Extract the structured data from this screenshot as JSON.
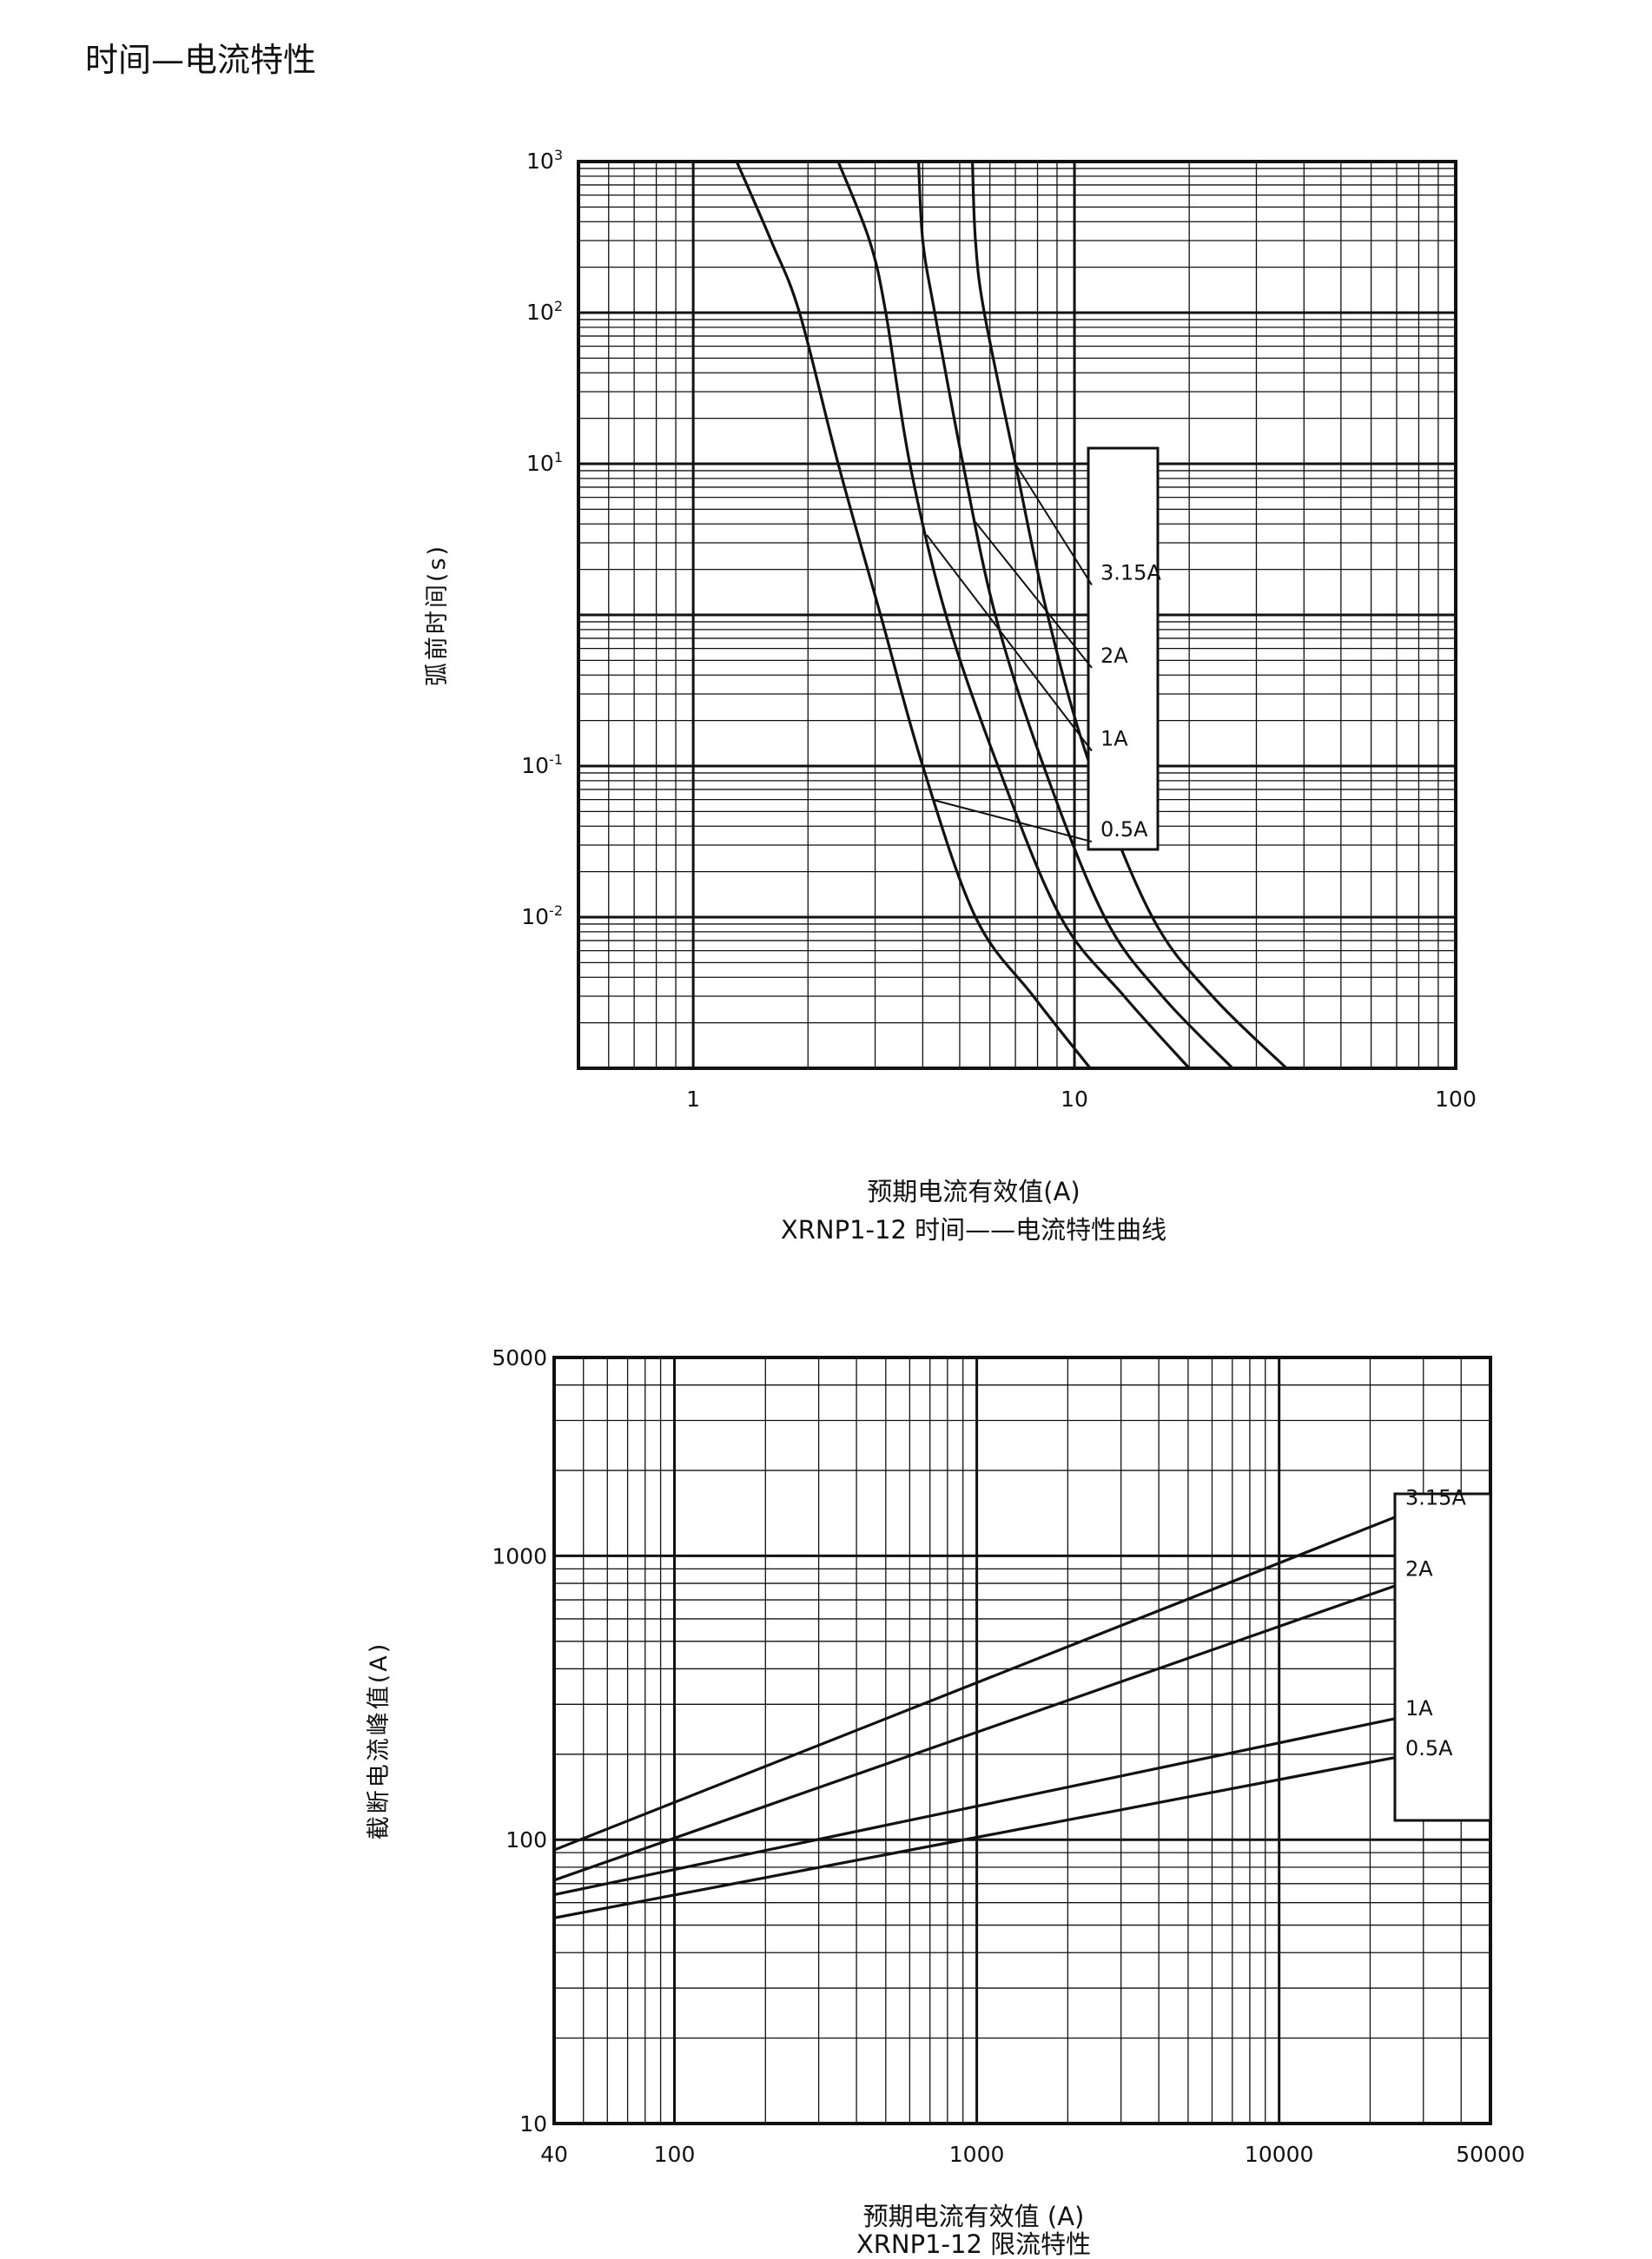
{
  "page": {
    "title": "时间—电流特性"
  },
  "colors": {
    "ink": "#111111",
    "background": "#ffffff"
  },
  "chart_data": [
    {
      "type": "line",
      "title": "XRNP1-12 时间——电流特性曲线",
      "xlabel": "预期电流有效值(A)",
      "ylabel": "弧前时间(s)",
      "x_scale": "log",
      "y_scale": "log",
      "xlim": [
        0.5,
        100
      ],
      "ylim": [
        0.001,
        1000
      ],
      "grid": true,
      "xticks": [
        {
          "v": 1,
          "label": "1"
        },
        {
          "v": 10,
          "label": "10"
        },
        {
          "v": 100,
          "label": "100"
        }
      ],
      "yticks": [
        {
          "v": 1000,
          "base": "10",
          "exp": "3"
        },
        {
          "v": 100,
          "base": "10",
          "exp": "2"
        },
        {
          "v": 10,
          "base": "10",
          "exp": "1"
        },
        {
          "v": 0.1,
          "base": "10",
          "exp": "-1"
        },
        {
          "v": 0.01,
          "base": "10",
          "exp": "-2"
        }
      ],
      "legend_position": "inside-right",
      "series": [
        {
          "name": "0.5A",
          "label_y": 0.0316,
          "pointer_x": 4.3,
          "x": [
            1.3,
            1.6,
            1.9,
            2.4,
            3.1,
            4.0,
            5.5,
            7.8,
            11.0
          ],
          "y": [
            1000,
            300,
            100,
            10,
            1,
            0.1,
            0.01,
            0.003,
            0.001
          ]
        },
        {
          "name": "1A",
          "label_y": 0.126,
          "pointer_x": 4.1,
          "x": [
            2.4,
            2.9,
            3.2,
            3.7,
            4.6,
            6.3,
            9.2,
            13.5,
            20.0
          ],
          "y": [
            1000,
            300,
            100,
            10,
            1,
            0.1,
            0.01,
            0.003,
            0.001
          ]
        },
        {
          "name": "2A",
          "label_y": 0.447,
          "pointer_x": 5.5,
          "x": [
            3.9,
            4.0,
            4.3,
            5.1,
            6.2,
            8.3,
            12.0,
            17.0,
            26.0
          ],
          "y": [
            1000,
            300,
            100,
            10,
            1,
            0.1,
            0.01,
            0.003,
            0.001
          ]
        },
        {
          "name": "3.15A",
          "label_y": 1.58,
          "pointer_x": 7.0,
          "x": [
            5.4,
            5.5,
            5.8,
            7.0,
            8.5,
            11.0,
            16.0,
            23.0,
            36.0
          ],
          "y": [
            1000,
            300,
            100,
            10,
            1,
            0.1,
            0.01,
            0.003,
            0.001
          ]
        }
      ]
    },
    {
      "type": "line",
      "title": "XRNP1-12 限流特性",
      "xlabel": "预期电流有效值 (A)",
      "ylabel": "截断电流峰值(A)",
      "x_scale": "log",
      "y_scale": "log",
      "xlim": [
        40,
        50000
      ],
      "ylim": [
        10,
        5000
      ],
      "grid": true,
      "xticks": [
        {
          "v": 40,
          "label": "40"
        },
        {
          "v": 100,
          "label": "100"
        },
        {
          "v": 1000,
          "label": "1000"
        },
        {
          "v": 10000,
          "label": "10000"
        },
        {
          "v": 50000,
          "label": "50000"
        }
      ],
      "yticks": [
        {
          "v": 5000,
          "label": "5000"
        },
        {
          "v": 1000,
          "label": "1000"
        },
        {
          "v": 100,
          "label": "100"
        },
        {
          "v": 10,
          "label": "10"
        }
      ],
      "legend_position": "inside-right",
      "series": [
        {
          "name": "3.15A",
          "x": [
            40,
            35000
          ],
          "y": [
            92,
            1600
          ]
        },
        {
          "name": "2A",
          "x": [
            40,
            35000
          ],
          "y": [
            72,
            900
          ]
        },
        {
          "name": "1A",
          "x": [
            40,
            35000
          ],
          "y": [
            64,
            290
          ]
        },
        {
          "name": "0.5A",
          "x": [
            40,
            35000
          ],
          "y": [
            53,
            210
          ]
        }
      ]
    }
  ]
}
